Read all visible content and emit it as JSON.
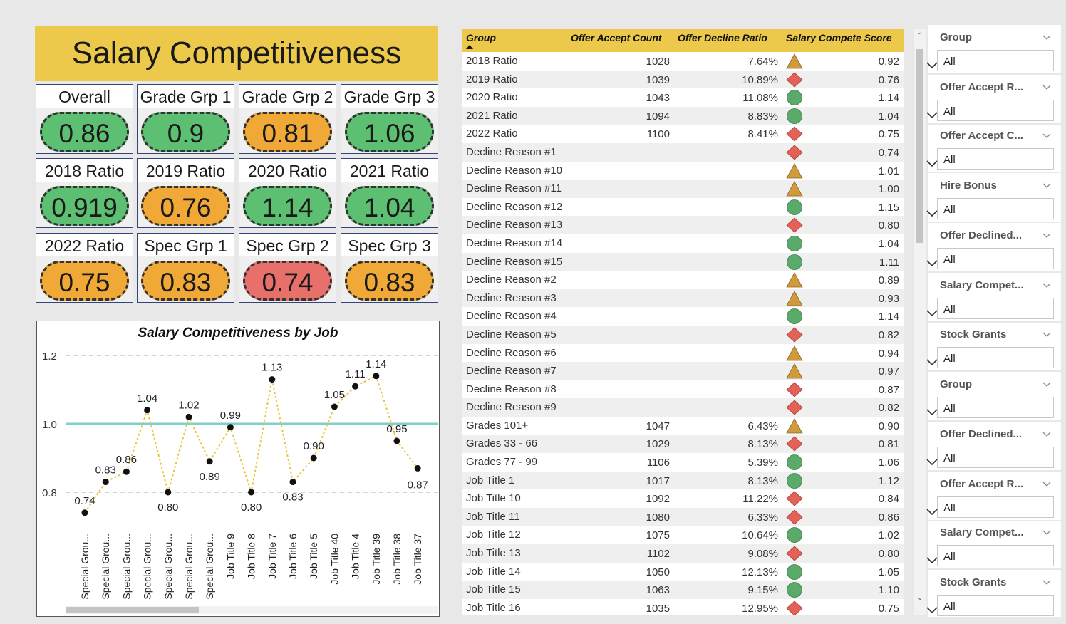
{
  "title": "Salary Competitiveness",
  "kpis": [
    {
      "label": "Overall",
      "value": "0.86",
      "color": "green"
    },
    {
      "label": "Grade Grp 1",
      "value": "0.9",
      "color": "green"
    },
    {
      "label": "Grade Grp 2",
      "value": "0.81",
      "color": "orange"
    },
    {
      "label": "Grade Grp 3",
      "value": "1.06",
      "color": "green"
    },
    {
      "label": "2018 Ratio",
      "value": "0.919",
      "color": "green"
    },
    {
      "label": "2019 Ratio",
      "value": "0.76",
      "color": "orange"
    },
    {
      "label": "2020 Ratio",
      "value": "1.14",
      "color": "green"
    },
    {
      "label": "2021 Ratio",
      "value": "1.04",
      "color": "green"
    },
    {
      "label": "2022 Ratio",
      "value": "0.75",
      "color": "orange"
    },
    {
      "label": "Spec Grp 1",
      "value": "0.83",
      "color": "orange"
    },
    {
      "label": "Spec Grp 2",
      "value": "0.74",
      "color": "red"
    },
    {
      "label": "Spec Grp 3",
      "value": "0.83",
      "color": "orange"
    }
  ],
  "chart_data": {
    "type": "line",
    "title": "Salary Competitiveness by Job",
    "categories": [
      "Special Grou...",
      "Special Grou...",
      "Special Grou...",
      "Special Grou...",
      "Special Grou...",
      "Special Grou...",
      "Special Grou...",
      "Job Title 9",
      "Job Title 8",
      "Job Title 7",
      "Job Title 6",
      "Job Title 5",
      "Job Title 40",
      "Job Title 4",
      "Job Title 39",
      "Job Title 38",
      "Job Title 37"
    ],
    "values": [
      0.74,
      0.83,
      0.86,
      1.04,
      0.8,
      1.02,
      0.89,
      0.99,
      0.8,
      1.13,
      0.83,
      0.9,
      1.05,
      1.11,
      1.14,
      0.95,
      0.87
    ],
    "value_labels": [
      "0.74",
      "0.83",
      "0.86",
      "1.04",
      "0.80",
      "1.02",
      "0.89",
      "0.99",
      "0.80",
      "1.13",
      "0.83",
      "0.90",
      "1.05",
      "1.11",
      "1.14",
      "0.95",
      "0.87"
    ],
    "y_ticks": [
      "1.2",
      "1.0",
      "0.8"
    ],
    "ylim": [
      0.7,
      1.2
    ],
    "reference_line": 1.0,
    "line_color": "#e8c53a",
    "reference_color": "#7fd0c8",
    "grid": true
  },
  "table": {
    "headers": [
      "Group",
      "Offer Accept Count",
      "Offer Decline Ratio",
      "Salary Compete Score"
    ],
    "rows": [
      {
        "group": "2018 Ratio",
        "count": "1028",
        "ratio": "7.64%",
        "icon": "triangle",
        "score": "0.92"
      },
      {
        "group": "2019 Ratio",
        "count": "1039",
        "ratio": "10.89%",
        "icon": "diamond",
        "score": "0.76"
      },
      {
        "group": "2020 Ratio",
        "count": "1043",
        "ratio": "11.08%",
        "icon": "circle",
        "score": "1.14"
      },
      {
        "group": "2021 Ratio",
        "count": "1094",
        "ratio": "8.83%",
        "icon": "circle",
        "score": "1.04"
      },
      {
        "group": "2022 Ratio",
        "count": "1100",
        "ratio": "8.41%",
        "icon": "diamond",
        "score": "0.75"
      },
      {
        "group": "Decline Reason #1",
        "count": "",
        "ratio": "",
        "icon": "diamond",
        "score": "0.74"
      },
      {
        "group": "Decline Reason #10",
        "count": "",
        "ratio": "",
        "icon": "triangle",
        "score": "1.01"
      },
      {
        "group": "Decline Reason #11",
        "count": "",
        "ratio": "",
        "icon": "triangle",
        "score": "1.00"
      },
      {
        "group": "Decline Reason #12",
        "count": "",
        "ratio": "",
        "icon": "circle",
        "score": "1.15"
      },
      {
        "group": "Decline Reason #13",
        "count": "",
        "ratio": "",
        "icon": "diamond",
        "score": "0.80"
      },
      {
        "group": "Decline Reason #14",
        "count": "",
        "ratio": "",
        "icon": "circle",
        "score": "1.04"
      },
      {
        "group": "Decline Reason #15",
        "count": "",
        "ratio": "",
        "icon": "circle",
        "score": "1.11"
      },
      {
        "group": "Decline Reason #2",
        "count": "",
        "ratio": "",
        "icon": "triangle",
        "score": "0.89"
      },
      {
        "group": "Decline Reason #3",
        "count": "",
        "ratio": "",
        "icon": "triangle",
        "score": "0.93"
      },
      {
        "group": "Decline Reason #4",
        "count": "",
        "ratio": "",
        "icon": "circle",
        "score": "1.14"
      },
      {
        "group": "Decline Reason #5",
        "count": "",
        "ratio": "",
        "icon": "diamond",
        "score": "0.82"
      },
      {
        "group": "Decline Reason #6",
        "count": "",
        "ratio": "",
        "icon": "triangle",
        "score": "0.94"
      },
      {
        "group": "Decline Reason #7",
        "count": "",
        "ratio": "",
        "icon": "triangle",
        "score": "0.97"
      },
      {
        "group": "Decline Reason #8",
        "count": "",
        "ratio": "",
        "icon": "diamond",
        "score": "0.87"
      },
      {
        "group": "Decline Reason #9",
        "count": "",
        "ratio": "",
        "icon": "diamond",
        "score": "0.82"
      },
      {
        "group": "Grades 101+",
        "count": "1047",
        "ratio": "6.43%",
        "icon": "triangle",
        "score": "0.90"
      },
      {
        "group": "Grades 33 - 66",
        "count": "1029",
        "ratio": "8.13%",
        "icon": "diamond",
        "score": "0.81"
      },
      {
        "group": "Grades 77 - 99",
        "count": "1106",
        "ratio": "5.39%",
        "icon": "circle",
        "score": "1.06"
      },
      {
        "group": "Job Title 1",
        "count": "1017",
        "ratio": "8.13%",
        "icon": "circle",
        "score": "1.12"
      },
      {
        "group": "Job Title 10",
        "count": "1092",
        "ratio": "11.22%",
        "icon": "diamond",
        "score": "0.84"
      },
      {
        "group": "Job Title 11",
        "count": "1080",
        "ratio": "6.33%",
        "icon": "diamond",
        "score": "0.86"
      },
      {
        "group": "Job Title 12",
        "count": "1075",
        "ratio": "10.64%",
        "icon": "circle",
        "score": "1.02"
      },
      {
        "group": "Job Title 13",
        "count": "1102",
        "ratio": "9.08%",
        "icon": "diamond",
        "score": "0.80"
      },
      {
        "group": "Job Title 14",
        "count": "1050",
        "ratio": "12.13%",
        "icon": "circle",
        "score": "1.05"
      },
      {
        "group": "Job Title 15",
        "count": "1063",
        "ratio": "9.15%",
        "icon": "circle",
        "score": "1.10"
      },
      {
        "group": "Job Title 16",
        "count": "1035",
        "ratio": "12.95%",
        "icon": "diamond",
        "score": "0.75"
      }
    ]
  },
  "icon_colors": {
    "triangle": "#d19a3a",
    "diamond": "#e46157",
    "circle": "#5aaa6a"
  },
  "slicers": [
    {
      "label": "Group",
      "value": "All"
    },
    {
      "label": "Offer Accept R...",
      "value": "All"
    },
    {
      "label": "Offer Accept C...",
      "value": "All"
    },
    {
      "label": "Hire Bonus",
      "value": "All"
    },
    {
      "label": "Offer Declined...",
      "value": "All"
    },
    {
      "label": "Salary Compet...",
      "value": "All"
    },
    {
      "label": "Stock Grants",
      "value": "All"
    },
    {
      "label": "Group",
      "value": "All"
    },
    {
      "label": "Offer Declined...",
      "value": "All"
    },
    {
      "label": "Offer Accept R...",
      "value": "All"
    },
    {
      "label": "Salary Compet...",
      "value": "All"
    },
    {
      "label": "Stock Grants",
      "value": "All"
    }
  ]
}
